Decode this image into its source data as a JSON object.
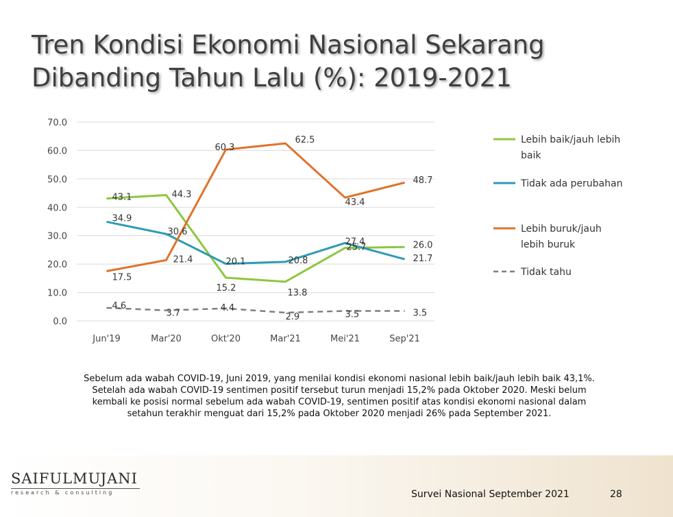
{
  "slide": {
    "title_line1": "Tren Kondisi Ekonomi Nasional Sekarang",
    "title_line2": "Dibanding Tahun Lalu (%): 2019-2021",
    "caption_lines": [
      "Sebelum ada wabah COVID-19, Juni 2019, yang menilai kondisi ekonomi nasional lebih baik/jauh lebih baik 43,1%.",
      "Setelah ada wabah COVID-19 sentimen positif tersebut turun menjadi 15,2% pada Oktober 2020. Meski belum",
      "kembali ke posisi normal sebelum ada wabah COVID-19, sentimen positif atas kondisi ekonomi nasional dalam",
      "setahun terakhir menguat dari 15,2% pada Oktober 2020 menjadi 26% pada September 2021."
    ],
    "logo_name": "SAIFULMUJANI",
    "logo_sub": "research & consulting",
    "footer_text": "Survei Nasional September 2021",
    "page_number": "28"
  },
  "chart_data": {
    "type": "line",
    "title": "",
    "xlabel": "",
    "ylabel": "",
    "categories": [
      "Jun'19",
      "Mar'20",
      "Okt'20",
      "Mar'21",
      "Mei'21",
      "Sep'21"
    ],
    "ylim": [
      0,
      70
    ],
    "yticks": [
      "0.0",
      "10.0",
      "20.0",
      "30.0",
      "40.0",
      "50.0",
      "60.0",
      "70.0"
    ],
    "grid": true,
    "legend_position": "right",
    "series": [
      {
        "name": "Lebih baik/jauh lebih baik",
        "legend_lines": [
          "Lebih baik/jauh lebih",
          "baik"
        ],
        "color": "#8dc63f",
        "dashed": false,
        "values": [
          43.1,
          44.3,
          15.2,
          13.8,
          25.7,
          26.0
        ],
        "labels": [
          "43.1",
          "44.3",
          "15.2",
          "13.8",
          "25.7",
          "26.0"
        ]
      },
      {
        "name": "Tidak ada perubahan",
        "legend_lines": [
          "Tidak ada perubahan"
        ],
        "color": "#2e9ab5",
        "dashed": false,
        "values": [
          34.9,
          30.6,
          20.1,
          20.8,
          27.4,
          21.7
        ],
        "labels": [
          "34.9",
          "30.6",
          "20.1",
          "20.8",
          "27.4",
          "21.7"
        ]
      },
      {
        "name": "Lebih buruk/jauh lebih buruk",
        "legend_lines": [
          "Lebih buruk/jauh",
          "lebih buruk"
        ],
        "color": "#e0722b",
        "dashed": false,
        "values": [
          17.5,
          21.4,
          60.3,
          62.5,
          43.4,
          48.7
        ],
        "labels": [
          "17.5",
          "21.4",
          "60.3",
          "62.5",
          "43.4",
          "48.7"
        ]
      },
      {
        "name": "Tidak tahu",
        "legend_lines": [
          "Tidak tahu"
        ],
        "color": "#7f7f7f",
        "dashed": true,
        "values": [
          4.6,
          3.7,
          4.4,
          2.9,
          3.5,
          3.5
        ],
        "labels": [
          "4.6",
          "3.7",
          "4.4",
          "2.9",
          "3.5",
          "3.5"
        ]
      }
    ]
  }
}
